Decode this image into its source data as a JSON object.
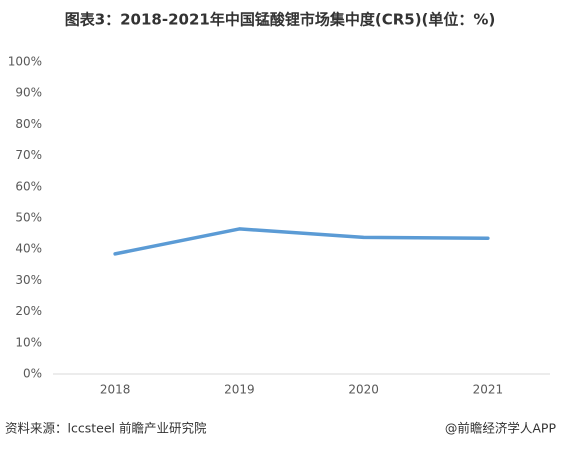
{
  "chart_data": {
    "type": "line",
    "title": "图表3：2018-2021年中国锰酸锂市场集中度(CR5)(单位：%)",
    "categories": [
      "2018",
      "2019",
      "2020",
      "2021"
    ],
    "values": [
      38.5,
      46.5,
      43.8,
      43.5
    ],
    "color": "#5b9bd5",
    "ylim": [
      0,
      100
    ],
    "yticks": [
      {
        "value": 0,
        "label": "0%"
      },
      {
        "value": 10,
        "label": "10%"
      },
      {
        "value": 20,
        "label": "20%"
      },
      {
        "value": 30,
        "label": "30%"
      },
      {
        "value": 40,
        "label": "40%"
      },
      {
        "value": 50,
        "label": "50%"
      },
      {
        "value": 60,
        "label": "60%"
      },
      {
        "value": 70,
        "label": "70%"
      },
      {
        "value": 80,
        "label": "80%"
      },
      {
        "value": 90,
        "label": "90%"
      },
      {
        "value": 100,
        "label": "100%"
      }
    ],
    "grid": false,
    "source": "资料来源：lccsteel 前瞻产业研究院",
    "credit": "@前瞻经济学人APP"
  }
}
